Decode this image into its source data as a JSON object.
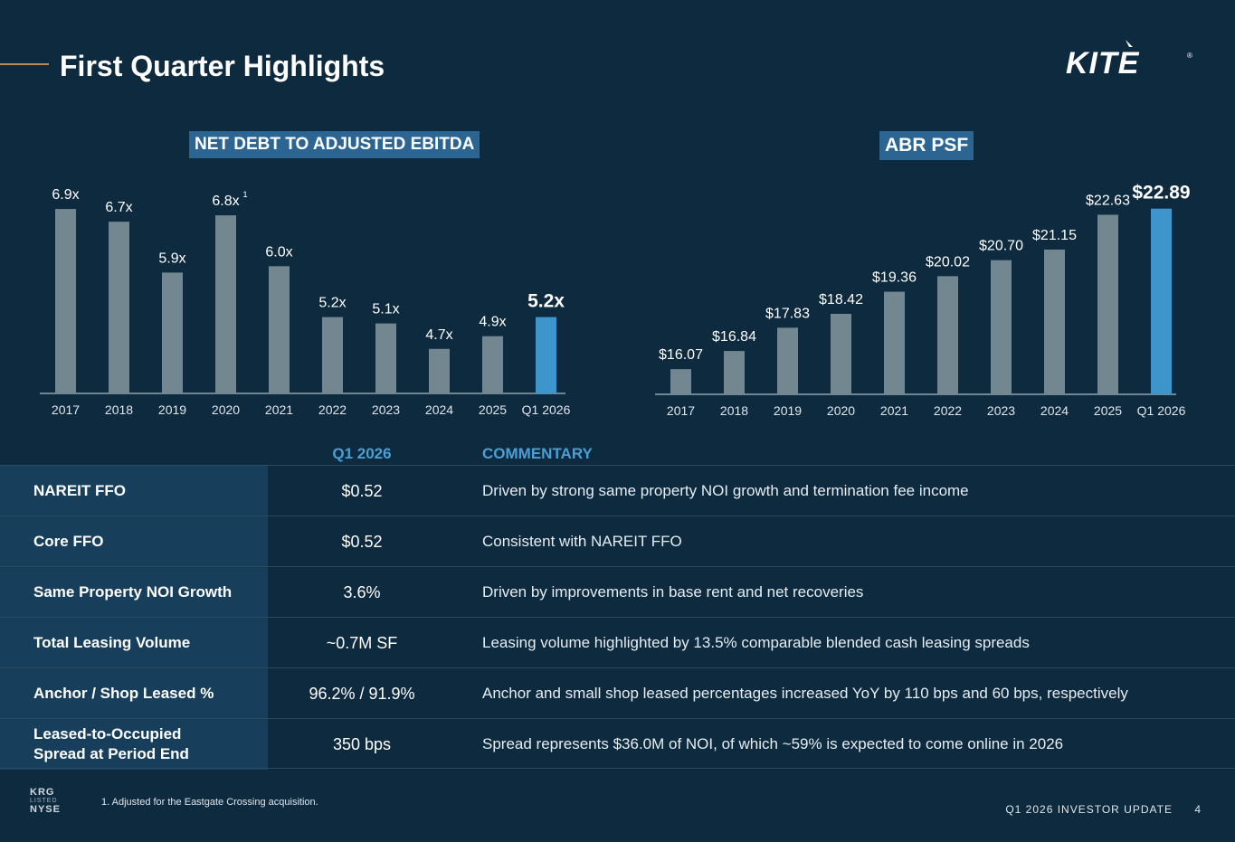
{
  "page": {
    "title": "First Quarter Highlights",
    "logo_text": "KITE",
    "footer_label": "Q1 2026 INVESTOR UPDATE",
    "page_number": "4",
    "footnote": "1.    Adjusted for the Eastgate Crossing acquisition.",
    "ticker": {
      "line1": "KRG",
      "line2": "LISTED",
      "line3": "NYSE"
    }
  },
  "colors": {
    "background": "#0e2a3f",
    "bar": "#738790",
    "highlight_bar": "#3d95cc",
    "accent": "#4a9fd6",
    "label_fill": "#173f5c"
  },
  "chart_data": [
    {
      "type": "bar",
      "title": "NET DEBT TO ADJUSTED EBITDA",
      "categories": [
        "2017",
        "2018",
        "2019",
        "2020",
        "2021",
        "2022",
        "2023",
        "2024",
        "2025",
        "Q1 2026"
      ],
      "values": [
        6.9,
        6.7,
        5.9,
        6.8,
        6.0,
        5.2,
        5.1,
        4.7,
        4.9,
        5.2
      ],
      "data_labels": [
        "6.9x",
        "6.7x",
        "5.9x",
        "6.8x",
        "6.0x",
        "5.2x",
        "5.1x",
        "4.7x",
        "4.9x",
        "5.2x"
      ],
      "superscript": {
        "index": 3,
        "text": "1"
      },
      "highlight_index": 9,
      "ylim": [
        4.0,
        7.1
      ]
    },
    {
      "type": "bar",
      "title": "ABR PSF",
      "categories": [
        "2017",
        "2018",
        "2019",
        "2020",
        "2021",
        "2022",
        "2023",
        "2024",
        "2025",
        "Q1 2026"
      ],
      "values": [
        16.07,
        16.84,
        17.83,
        18.42,
        19.36,
        20.02,
        20.7,
        21.15,
        22.63,
        22.89
      ],
      "data_labels": [
        "$16.07",
        "$16.84",
        "$17.83",
        "$18.42",
        "$19.36",
        "$20.02",
        "$20.70",
        "$21.15",
        "$22.63",
        "$22.89"
      ],
      "highlight_index": 9,
      "ylim": [
        15.0,
        23.3
      ]
    }
  ],
  "table": {
    "col_value_header": "Q1 2026",
    "col_commentary_header": "COMMENTARY",
    "rows": [
      {
        "label": "NAREIT FFO",
        "value": "$0.52",
        "commentary": "Driven by strong same property NOI growth and termination fee income"
      },
      {
        "label": "Core FFO",
        "value": "$0.52",
        "commentary": "Consistent with NAREIT FFO"
      },
      {
        "label": "Same Property NOI Growth",
        "value": "3.6%",
        "commentary": "Driven by improvements in base rent and net recoveries"
      },
      {
        "label": "Total Leasing Volume",
        "value": "~0.7M SF",
        "commentary": "Leasing volume highlighted by 13.5% comparable blended cash leasing spreads"
      },
      {
        "label": "Anchor / Shop Leased %",
        "value": "96.2% / 91.9%",
        "commentary": "Anchor and small shop leased percentages increased YoY by 110 bps and 60 bps, respectively"
      },
      {
        "label": "Leased-to-Occupied Spread at Period End",
        "value": "350 bps",
        "commentary": "Spread represents $36.0M of NOI, of which ~59% is expected to come online in 2026"
      }
    ]
  }
}
